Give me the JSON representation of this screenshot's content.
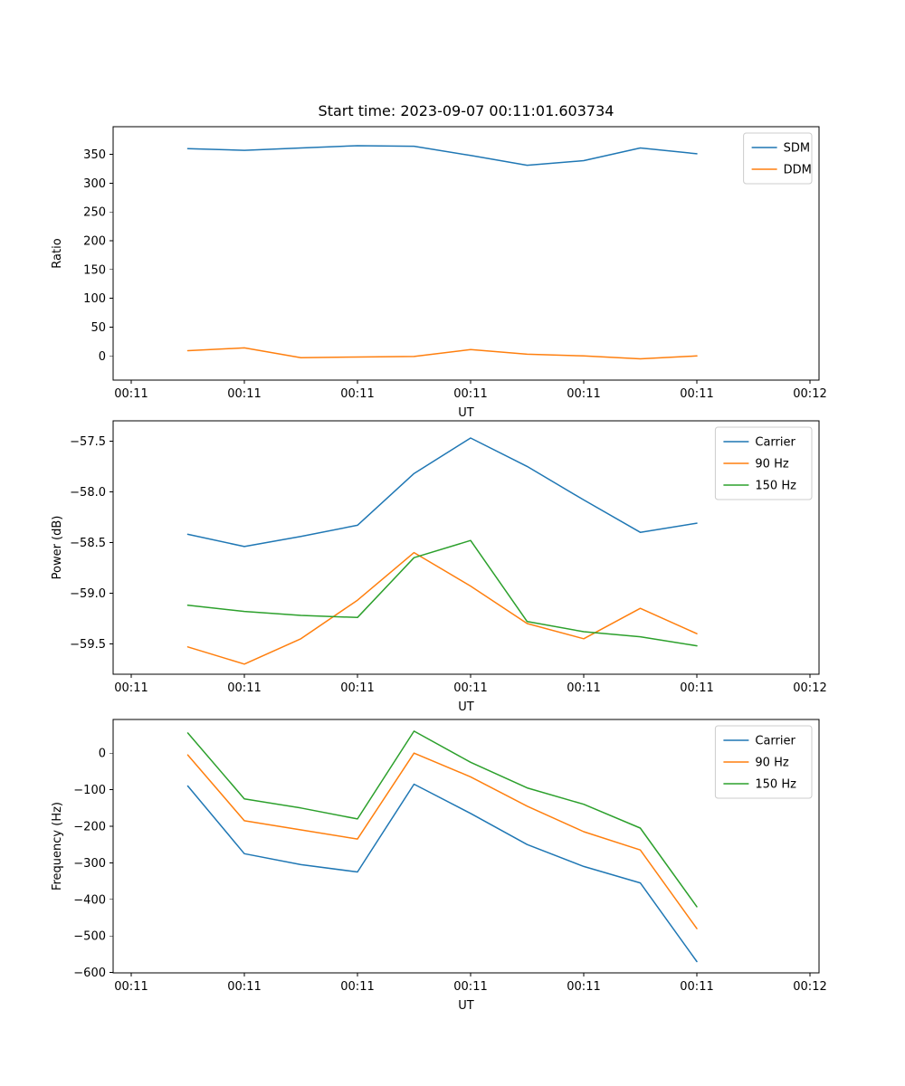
{
  "chart_data": [
    {
      "id": "ratio-subplot",
      "type": "line",
      "title": "Start time: 2023-09-07 00:11:01.603734",
      "xlabel": "UT",
      "ylabel": "Ratio",
      "xlim": [
        -1.6,
        60.8
      ],
      "ylim": [
        -42,
        398
      ],
      "legend_loc": "upper right",
      "x": [
        5,
        10,
        15,
        20,
        25,
        30,
        35,
        40,
        45,
        50
      ],
      "xticks": [
        {
          "value": 0,
          "label": "00:11"
        },
        {
          "value": 10,
          "label": "00:11"
        },
        {
          "value": 20,
          "label": "00:11"
        },
        {
          "value": 30,
          "label": "00:11"
        },
        {
          "value": 40,
          "label": "00:11"
        },
        {
          "value": 50,
          "label": "00:11"
        },
        {
          "value": 60,
          "label": "00:12"
        }
      ],
      "yticks": [
        {
          "value": 0,
          "label": "0"
        },
        {
          "value": 50,
          "label": "50"
        },
        {
          "value": 100,
          "label": "100"
        },
        {
          "value": 150,
          "label": "150"
        },
        {
          "value": 200,
          "label": "200"
        },
        {
          "value": 250,
          "label": "250"
        },
        {
          "value": 300,
          "label": "300"
        },
        {
          "value": 350,
          "label": "350"
        }
      ],
      "series": [
        {
          "name": "SDM",
          "color": "#1f77b4",
          "values": [
            360,
            357,
            361,
            365,
            364,
            348,
            331,
            339,
            361,
            351
          ]
        },
        {
          "name": "DDM",
          "color": "#ff7f0e",
          "values": [
            9,
            14,
            -3,
            -2,
            -1,
            11,
            3,
            0,
            -5,
            0
          ]
        }
      ]
    },
    {
      "id": "power-subplot",
      "type": "line",
      "title": "",
      "xlabel": "UT",
      "ylabel": "Power (dB)",
      "xlim": [
        -1.6,
        60.8
      ],
      "ylim": [
        -59.8,
        -57.3
      ],
      "legend_loc": "upper right",
      "x": [
        5,
        10,
        15,
        20,
        25,
        30,
        35,
        40,
        45,
        50
      ],
      "xticks": [
        {
          "value": 0,
          "label": "00:11"
        },
        {
          "value": 10,
          "label": "00:11"
        },
        {
          "value": 20,
          "label": "00:11"
        },
        {
          "value": 30,
          "label": "00:11"
        },
        {
          "value": 40,
          "label": "00:11"
        },
        {
          "value": 50,
          "label": "00:11"
        },
        {
          "value": 60,
          "label": "00:12"
        }
      ],
      "yticks": [
        {
          "value": -57.5,
          "label": "−57.5"
        },
        {
          "value": -58.0,
          "label": "−58.0"
        },
        {
          "value": -58.5,
          "label": "−58.5"
        },
        {
          "value": -59.0,
          "label": "−59.0"
        },
        {
          "value": -59.5,
          "label": "−59.5"
        }
      ],
      "series": [
        {
          "name": "Carrier",
          "color": "#1f77b4",
          "values": [
            -58.42,
            -58.54,
            -58.44,
            -58.33,
            -57.82,
            -57.47,
            -57.75,
            -58.08,
            -58.4,
            -58.31
          ]
        },
        {
          "name": "90 Hz",
          "color": "#ff7f0e",
          "values": [
            -59.53,
            -59.7,
            -59.45,
            -59.07,
            -58.6,
            -58.93,
            -59.3,
            -59.45,
            -59.15,
            -59.4
          ]
        },
        {
          "name": "150 Hz",
          "color": "#2ca02c",
          "values": [
            -59.12,
            -59.18,
            -59.22,
            -59.24,
            -58.65,
            -58.48,
            -59.28,
            -59.38,
            -59.43,
            -59.52
          ]
        }
      ]
    },
    {
      "id": "frequency-subplot",
      "type": "line",
      "title": "",
      "xlabel": "UT",
      "ylabel": "Frequency (Hz)",
      "xlim": [
        -1.6,
        60.8
      ],
      "ylim": [
        -601,
        92
      ],
      "legend_loc": "upper right",
      "x": [
        5,
        10,
        15,
        20,
        25,
        30,
        35,
        40,
        45,
        50
      ],
      "xticks": [
        {
          "value": 0,
          "label": "00:11"
        },
        {
          "value": 10,
          "label": "00:11"
        },
        {
          "value": 20,
          "label": "00:11"
        },
        {
          "value": 30,
          "label": "00:11"
        },
        {
          "value": 40,
          "label": "00:11"
        },
        {
          "value": 50,
          "label": "00:11"
        },
        {
          "value": 60,
          "label": "00:12"
        }
      ],
      "yticks": [
        {
          "value": 0,
          "label": "0"
        },
        {
          "value": -100,
          "label": "−100"
        },
        {
          "value": -200,
          "label": "−200"
        },
        {
          "value": -300,
          "label": "−300"
        },
        {
          "value": -400,
          "label": "−400"
        },
        {
          "value": -500,
          "label": "−500"
        },
        {
          "value": -600,
          "label": "−600"
        }
      ],
      "series": [
        {
          "name": "Carrier",
          "color": "#1f77b4",
          "values": [
            -90,
            -275,
            -305,
            -325,
            -85,
            -165,
            -250,
            -310,
            -355,
            -570
          ]
        },
        {
          "name": "90 Hz",
          "color": "#ff7f0e",
          "values": [
            -5,
            -185,
            -210,
            -235,
            0,
            -65,
            -145,
            -215,
            -265,
            -480
          ]
        },
        {
          "name": "150 Hz",
          "color": "#2ca02c",
          "values": [
            55,
            -125,
            -150,
            -180,
            60,
            -25,
            -95,
            -140,
            -205,
            -420
          ]
        }
      ]
    }
  ]
}
